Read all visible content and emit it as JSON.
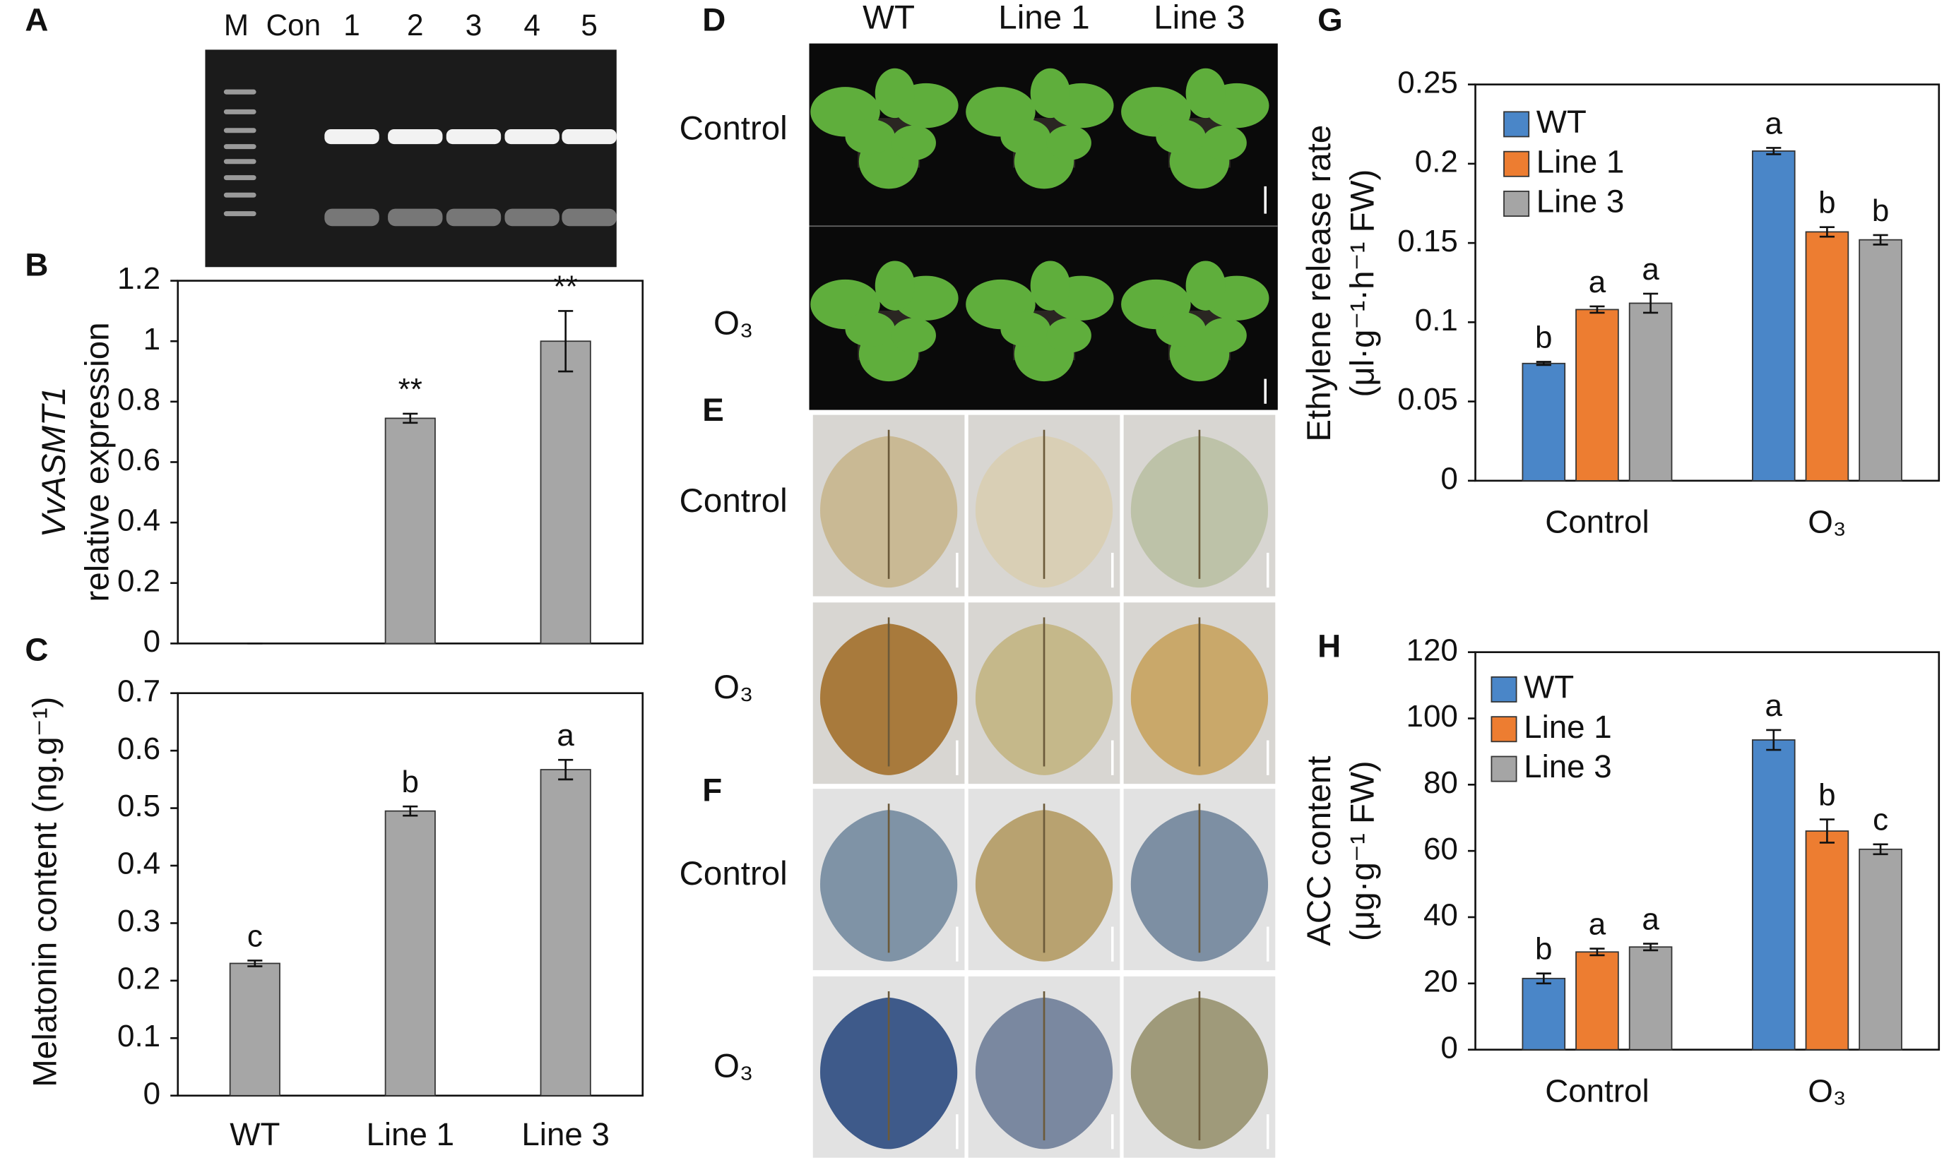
{
  "figure": {
    "gel": {
      "panel": "A",
      "lanes": [
        "M",
        "Con",
        "1",
        "2",
        "3",
        "4",
        "5"
      ]
    },
    "photos": {
      "panels": [
        "D",
        "E",
        "F"
      ],
      "columns": [
        "WT",
        "Line 1",
        "Line 3"
      ],
      "rows": [
        "Control",
        "O₃"
      ]
    }
  },
  "chart_data": [
    {
      "type": "bar",
      "panel": "B",
      "ylabel": [
        "VvASMT1",
        "relative expression"
      ],
      "categories": [
        null,
        null,
        null
      ],
      "values": [
        0,
        0.745,
        1.0
      ],
      "errors": [
        0,
        0.015,
        0.1
      ],
      "annotations": [
        null,
        "**",
        "**"
      ],
      "color": "#a6a6a6",
      "ylim": [
        0,
        1.2
      ],
      "yticks": [
        0,
        0.2,
        0.4,
        0.6,
        0.8,
        1,
        1.2
      ]
    },
    {
      "type": "bar",
      "panel": "C",
      "ylabel": [
        "Melatonin content (ng.g⁻¹)"
      ],
      "categories": [
        "WT",
        "Line 1",
        "Line 3"
      ],
      "values": [
        0.23,
        0.495,
        0.567
      ],
      "errors": [
        0.005,
        0.008,
        0.017
      ],
      "annotations": [
        "c",
        "b",
        "a"
      ],
      "color": "#a6a6a6",
      "ylim": [
        0,
        0.7
      ],
      "yticks": [
        0,
        0.1,
        0.2,
        0.3,
        0.4,
        0.5,
        0.6,
        0.7
      ]
    },
    {
      "type": "grouped-bar",
      "panel": "G",
      "ylabel": [
        "Ethylene release rate",
        "(μl·g⁻¹·h⁻¹ FW)"
      ],
      "categories": [
        "Control",
        "O₃"
      ],
      "series": [
        {
          "name": "WT",
          "color": "#4a86c8",
          "values": [
            0.074,
            0.208
          ],
          "errors": [
            0.001,
            0.002
          ],
          "annotations": [
            "b",
            "a"
          ]
        },
        {
          "name": "Line 1",
          "color": "#ed7d31",
          "values": [
            0.108,
            0.157
          ],
          "errors": [
            0.002,
            0.003
          ],
          "annotations": [
            "a",
            "b"
          ]
        },
        {
          "name": "Line 3",
          "color": "#a5a5a5",
          "values": [
            0.112,
            0.152
          ],
          "errors": [
            0.006,
            0.003
          ],
          "annotations": [
            "a",
            "b"
          ]
        }
      ],
      "ylim": [
        0,
        0.25
      ],
      "yticks": [
        0,
        0.05,
        0.1,
        0.15,
        0.2,
        0.25
      ],
      "legend": "upper-left"
    },
    {
      "type": "grouped-bar",
      "panel": "H",
      "ylabel": [
        "ACC content",
        "(μg·g⁻¹ FW)"
      ],
      "categories": [
        "Control",
        "O₃"
      ],
      "series": [
        {
          "name": "WT",
          "color": "#4a86c8",
          "values": [
            21.5,
            93.5
          ],
          "errors": [
            1.5,
            3
          ],
          "annotations": [
            "b",
            "a"
          ]
        },
        {
          "name": "Line 1",
          "color": "#ed7d31",
          "values": [
            29.5,
            66
          ],
          "errors": [
            1,
            3.5
          ],
          "annotations": [
            "a",
            "b"
          ]
        },
        {
          "name": "Line 3",
          "color": "#a5a5a5",
          "values": [
            31,
            60.5
          ],
          "errors": [
            1,
            1.5
          ],
          "annotations": [
            "a",
            "c"
          ]
        }
      ],
      "ylim": [
        0,
        120
      ],
      "yticks": [
        0,
        20,
        40,
        60,
        80,
        100,
        120
      ],
      "legend": "upper-left"
    }
  ]
}
